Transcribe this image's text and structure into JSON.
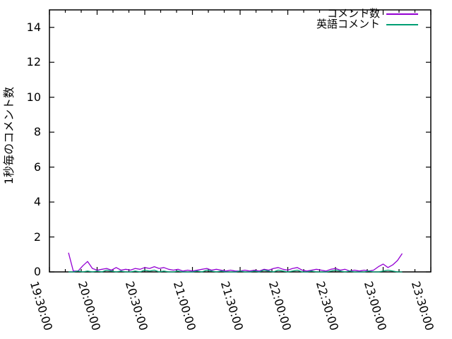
{
  "colors": {
    "background": "#ffffff",
    "axis": "#000000",
    "text": "#000000",
    "series_comments": "#9400d3",
    "series_english": "#009e73"
  },
  "chart_data": {
    "type": "line",
    "title": "",
    "xlabel": "",
    "ylabel": "1秒毎のコメント数",
    "grid": false,
    "legend_position": "top-right-inside",
    "ylim": [
      0,
      15
    ],
    "y_ticks": [
      0,
      2,
      4,
      6,
      8,
      10,
      12,
      14
    ],
    "xlim": [
      "19:30",
      "23:30"
    ],
    "x_ticks": [
      "19:30:00",
      "20:00:00",
      "20:30:00",
      "21:00:00",
      "21:30:00",
      "22:00:00",
      "22:30:00",
      "23:00:00",
      "23:30:00"
    ],
    "x_major_tick_minutes": 30,
    "x_minor_tick_minutes": 10,
    "x": [
      "19:42",
      "19:45",
      "19:48",
      "19:51",
      "19:54",
      "19:57",
      "20:00",
      "20:03",
      "20:06",
      "20:09",
      "20:12",
      "20:15",
      "20:18",
      "20:21",
      "20:24",
      "20:27",
      "20:30",
      "20:33",
      "20:36",
      "20:39",
      "20:42",
      "20:45",
      "20:48",
      "20:51",
      "20:54",
      "20:57",
      "21:00",
      "21:03",
      "21:06",
      "21:09",
      "21:12",
      "21:15",
      "21:18",
      "21:21",
      "21:24",
      "21:27",
      "21:30",
      "21:33",
      "21:36",
      "21:39",
      "21:42",
      "21:45",
      "21:48",
      "21:51",
      "21:54",
      "21:57",
      "22:00",
      "22:03",
      "22:06",
      "22:09",
      "22:12",
      "22:15",
      "22:18",
      "22:21",
      "22:24",
      "22:27",
      "22:30",
      "22:33",
      "22:36",
      "22:39",
      "22:42",
      "22:45",
      "22:48",
      "22:51",
      "22:54",
      "22:57",
      "23:00",
      "23:03",
      "23:06",
      "23:09",
      "23:12"
    ],
    "series": [
      {
        "name": "コメント数",
        "color": "#9400d3",
        "values": [
          1.1,
          0.05,
          0.05,
          0.35,
          0.6,
          0.2,
          0.1,
          0.15,
          0.2,
          0.1,
          0.25,
          0.1,
          0.15,
          0.1,
          0.2,
          0.15,
          0.25,
          0.2,
          0.3,
          0.2,
          0.25,
          0.15,
          0.1,
          0.15,
          0.05,
          0.1,
          0.05,
          0.1,
          0.15,
          0.2,
          0.1,
          0.15,
          0.1,
          0.05,
          0.1,
          0.05,
          0.05,
          0.1,
          0.05,
          0.1,
          0.05,
          0.15,
          0.1,
          0.2,
          0.25,
          0.15,
          0.1,
          0.2,
          0.25,
          0.1,
          0.05,
          0.1,
          0.15,
          0.1,
          0.05,
          0.15,
          0.2,
          0.1,
          0.15,
          0.05,
          0.1,
          0.05,
          0.1,
          0.05,
          0.1,
          0.3,
          0.45,
          0.25,
          0.4,
          0.65,
          1.05
        ]
      },
      {
        "name": "英語コメント",
        "color": "#009e73",
        "values": [
          0,
          0,
          0.05,
          0,
          0.05,
          0,
          0.05,
          0,
          0.1,
          0.05,
          0,
          0.05,
          0,
          0,
          0.05,
          0,
          0.1,
          0.05,
          0.1,
          0,
          0.05,
          0,
          0,
          0.05,
          0,
          0,
          0,
          0.05,
          0,
          0.1,
          0.05,
          0,
          0.05,
          0,
          0,
          0,
          0.05,
          0,
          0,
          0.05,
          0,
          0.1,
          0.05,
          0,
          0.1,
          0.05,
          0,
          0.05,
          0.1,
          0,
          0,
          0.05,
          0,
          0,
          0,
          0.05,
          0.1,
          0.05,
          0,
          0.05,
          0,
          0,
          0,
          0.05,
          0,
          0,
          0.05,
          0.1,
          0.05,
          0,
          0
        ]
      }
    ]
  }
}
